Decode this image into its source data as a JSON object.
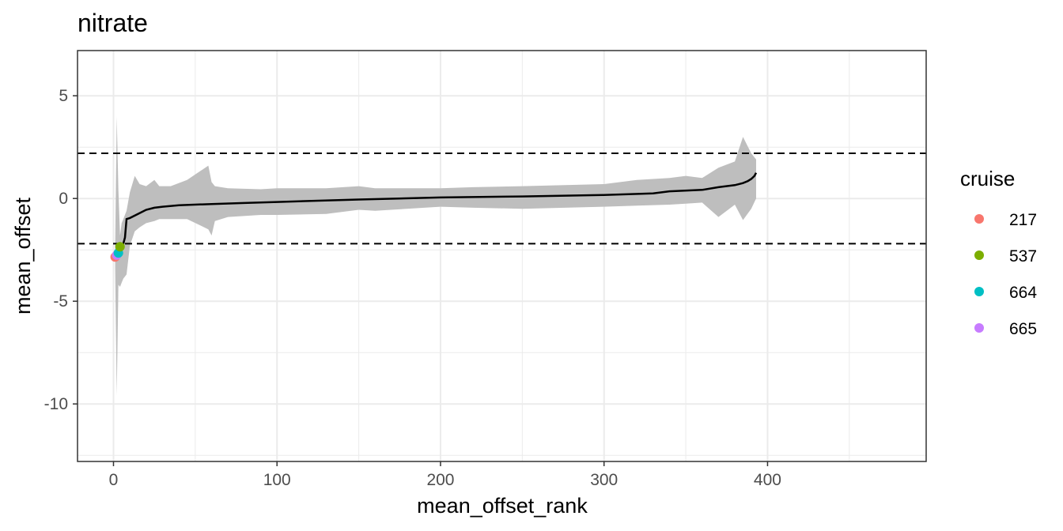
{
  "chart_data": {
    "type": "line",
    "title": "nitrate",
    "xlabel": "mean_offset_rank",
    "ylabel": "mean_offset",
    "xlim": [
      -22,
      497
    ],
    "ylim": [
      -12.8,
      7.2
    ],
    "x_ticks": [
      0,
      100,
      200,
      300,
      400
    ],
    "x_tick_labels": [
      "0",
      "100",
      "200",
      "300",
      "400"
    ],
    "y_ticks": [
      5,
      0,
      -5,
      -10
    ],
    "y_tick_labels": [
      "5",
      "0",
      "-5",
      "-10"
    ],
    "grid": true,
    "theme": "bw",
    "reference_lines": [
      {
        "y": 2.2,
        "style": "dashed"
      },
      {
        "y": -2.2,
        "style": "dashed"
      }
    ],
    "series": [
      {
        "kind": "line",
        "color": "#000000",
        "x": [
          1,
          5,
          6,
          7,
          8,
          10,
          15,
          20,
          25,
          30,
          40,
          60,
          80,
          100,
          150,
          200,
          250,
          300,
          330,
          340,
          360,
          370,
          380,
          385,
          388,
          390,
          392,
          393
        ],
        "y": [
          -2.8,
          -2.3,
          -2.2,
          -1.9,
          -1.0,
          -0.95,
          -0.75,
          -0.55,
          -0.45,
          -0.4,
          -0.33,
          -0.27,
          -0.22,
          -0.17,
          -0.05,
          0.05,
          0.1,
          0.17,
          0.25,
          0.35,
          0.42,
          0.55,
          0.65,
          0.75,
          0.85,
          0.95,
          1.1,
          1.25
        ]
      },
      {
        "kind": "ribbon",
        "color": "#bebebe",
        "x": [
          1,
          2,
          3,
          4,
          5,
          6,
          8,
          10,
          13,
          16,
          20,
          25,
          28,
          35,
          45,
          58,
          60,
          62,
          70,
          90,
          100,
          130,
          150,
          160,
          200,
          220,
          250,
          300,
          320,
          340,
          350,
          360,
          370,
          380,
          385,
          390,
          393
        ],
        "upper": [
          -2.3,
          4.0,
          0.4,
          -1.8,
          -1.2,
          -1.0,
          -0.6,
          0.3,
          1.1,
          0.7,
          0.6,
          0.9,
          0.6,
          0.6,
          0.9,
          1.6,
          0.8,
          0.6,
          0.5,
          0.45,
          0.5,
          0.5,
          0.6,
          0.5,
          0.5,
          0.55,
          0.6,
          0.7,
          0.9,
          1.0,
          1.1,
          1.0,
          1.5,
          1.8,
          3.0,
          2.2,
          1.9
        ],
        "lower": [
          -3.4,
          -9.6,
          -4.2,
          -4.3,
          -4.1,
          -3.9,
          -3.7,
          -2.3,
          -1.6,
          -1.4,
          -1.2,
          -1.1,
          -1.0,
          -1.0,
          -1.0,
          -1.5,
          -1.8,
          -1.1,
          -0.9,
          -0.8,
          -0.8,
          -0.75,
          -0.55,
          -0.6,
          -0.4,
          -0.45,
          -0.5,
          -0.4,
          -0.35,
          -0.3,
          -0.25,
          -0.2,
          -0.9,
          -0.3,
          -1.05,
          -0.5,
          0.0
        ]
      }
    ],
    "points": [
      {
        "cruise": "217",
        "x": 1,
        "y": -2.85,
        "color": "#F8766D"
      },
      {
        "cruise": "665",
        "x": 2,
        "y": -2.75,
        "color": "#C77CFF"
      },
      {
        "cruise": "664",
        "x": 3,
        "y": -2.65,
        "color": "#00BFC4"
      },
      {
        "cruise": "537",
        "x": 4,
        "y": -2.35,
        "color": "#7CAE00"
      }
    ],
    "legend": {
      "title": "cruise",
      "position": "right",
      "entries": [
        {
          "label": "217",
          "color": "#F8766D"
        },
        {
          "label": "537",
          "color": "#7CAE00"
        },
        {
          "label": "664",
          "color": "#00BFC4"
        },
        {
          "label": "665",
          "color": "#C77CFF"
        }
      ]
    }
  }
}
